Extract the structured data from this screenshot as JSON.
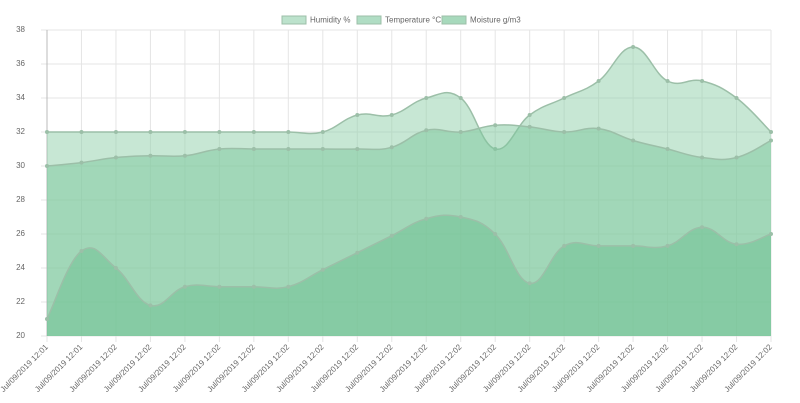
{
  "chart_data": {
    "type": "area",
    "categories": [
      "Jul/09/2019 12:01",
      "Jul/09/2019 12:01",
      "Jul/09/2019 12:02",
      "Jul/09/2019 12:02",
      "Jul/09/2019 12:02",
      "Jul/09/2019 12:02",
      "Jul/09/2019 12:02",
      "Jul/09/2019 12:02",
      "Jul/09/2019 12:02",
      "Jul/09/2019 12:02",
      "Jul/09/2019 12:02",
      "Jul/09/2019 12:02",
      "Jul/09/2019 12:02",
      "Jul/09/2019 12:02",
      "Jul/09/2019 12:02",
      "Jul/09/2019 12:02",
      "Jul/09/2019 12:02",
      "Jul/09/2019 12:02",
      "Jul/09/2019 12:02",
      "Jul/09/2019 12:02",
      "Jul/09/2019 12:02",
      "Jul/09/2019 12:02"
    ],
    "series": [
      {
        "name": "Humidity %",
        "color": "#8fcfaa",
        "values": [
          32,
          32,
          32,
          32,
          32,
          32,
          32,
          32,
          32,
          33,
          33,
          34,
          34,
          31,
          33,
          34,
          35,
          37,
          35,
          35,
          34,
          32
        ]
      },
      {
        "name": "Temperature °C",
        "color": "#7cc79c",
        "values": [
          30,
          30.2,
          30.5,
          30.6,
          30.6,
          31,
          31,
          31,
          31,
          31,
          31.1,
          32.1,
          32,
          32.4,
          32.3,
          32,
          32.2,
          31.5,
          31,
          30.5,
          30.5,
          31.5
        ]
      },
      {
        "name": "Moisture g/m3",
        "color": "#6cc090",
        "values": [
          21,
          25,
          24,
          21.8,
          22.9,
          22.9,
          22.9,
          22.9,
          23.9,
          24.9,
          25.9,
          26.9,
          27,
          26,
          23.1,
          25.3,
          25.3,
          25.3,
          25.3,
          26.4,
          25.4,
          26
        ]
      }
    ],
    "ylim": [
      20,
      38
    ],
    "yticks": [
      20,
      22,
      24,
      26,
      28,
      30,
      32,
      34,
      36,
      38
    ],
    "grid": true,
    "legend": "top"
  }
}
